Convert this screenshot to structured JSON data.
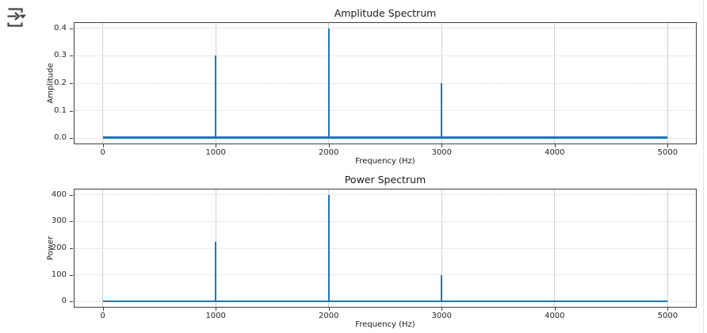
{
  "toolbar": {
    "icon_name": "arrow-right-dropdown-icon"
  },
  "colors": {
    "accent_line": "#1f77b4",
    "spine": "#3d3d3d",
    "grid": "#d7d7d7",
    "icon": "#424242",
    "panel_divider": "#e3e3e3"
  },
  "chart_data": [
    {
      "type": "line",
      "title": "Amplitude Spectrum",
      "xlabel": "Frequency (Hz)",
      "ylabel": "Amplitude",
      "xlim": [
        -250,
        5250
      ],
      "ylim": [
        -0.02,
        0.42
      ],
      "xticks": [
        0,
        1000,
        2000,
        3000,
        4000,
        5000
      ],
      "xtick_labels": [
        "0",
        "1000",
        "2000",
        "3000",
        "4000",
        "5000"
      ],
      "yticks": [
        0.0,
        0.1,
        0.2,
        0.3,
        0.4
      ],
      "ytick_labels": [
        "0.0",
        "0.1",
        "0.2",
        "0.3",
        "0.4"
      ],
      "grid": true,
      "line_color": "#1f77b4",
      "baseline": {
        "x_start": 0,
        "x_end": 5000,
        "y": 0,
        "thickness": 3
      },
      "peaks": [
        {
          "x": 1000,
          "y": 0.3
        },
        {
          "x": 2000,
          "y": 0.4
        },
        {
          "x": 3000,
          "y": 0.2
        }
      ]
    },
    {
      "type": "line",
      "title": "Power Spectrum",
      "xlabel": "Frequency (Hz)",
      "ylabel": "Power",
      "xlim": [
        -250,
        5250
      ],
      "ylim": [
        -20,
        420
      ],
      "xticks": [
        0,
        1000,
        2000,
        3000,
        4000,
        5000
      ],
      "xtick_labels": [
        "0",
        "1000",
        "2000",
        "3000",
        "4000",
        "5000"
      ],
      "yticks": [
        0,
        100,
        200,
        300,
        400
      ],
      "ytick_labels": [
        "0",
        "100",
        "200",
        "300",
        "400"
      ],
      "grid": true,
      "line_color": "#1f77b4",
      "baseline": {
        "x_start": 0,
        "x_end": 5000,
        "y": 0,
        "thickness": 2
      },
      "peaks": [
        {
          "x": 1000,
          "y": 225
        },
        {
          "x": 2000,
          "y": 400
        },
        {
          "x": 3000,
          "y": 100
        }
      ]
    }
  ]
}
